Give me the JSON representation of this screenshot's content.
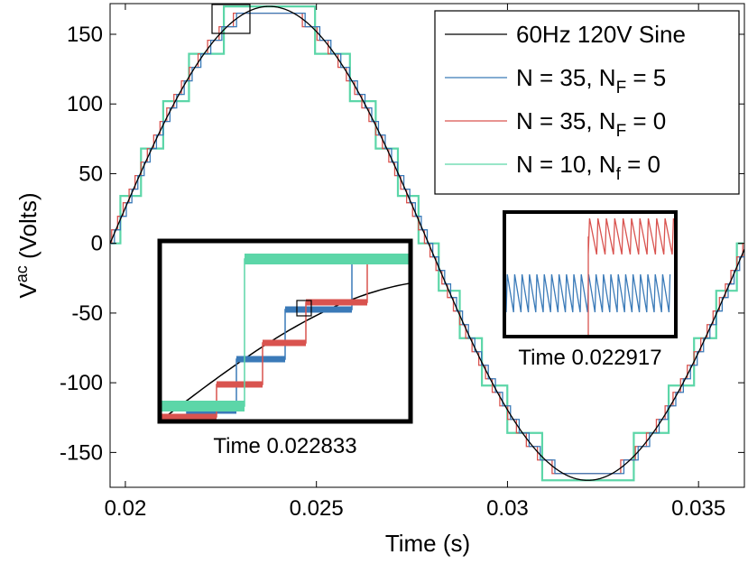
{
  "chart_data": {
    "type": "line",
    "xlabel": "Time (s)",
    "ylabel_base": "V",
    "ylabel_sup": "ac",
    "ylabel_rest": " (Volts)",
    "xlim": [
      0.0196,
      0.0362
    ],
    "ylim": [
      -175,
      172
    ],
    "xticks": [
      0.02,
      0.025,
      0.03,
      0.035
    ],
    "xtick_labels": [
      "0.02",
      "0.025",
      "0.03",
      "0.035"
    ],
    "yticks": [
      150,
      100,
      50,
      0,
      -50,
      -100,
      -150
    ],
    "ytick_labels": [
      "150",
      "100",
      "50",
      "0",
      "-50",
      "-100",
      "-150"
    ],
    "sine": {
      "frequency_hz": 60,
      "amplitude_v": 170,
      "phase_start_s": 0.0196
    },
    "series": [
      {
        "name": "60Hz 120V Sine",
        "levels": 0,
        "offset": 0,
        "color": "#000000"
      },
      {
        "name": "N = 35, NF = 5",
        "levels": 35,
        "offset": -3.5e-05,
        "color": "#3a7ab8"
      },
      {
        "name": "N = 35, NF = 0",
        "levels": 35,
        "offset": 4e-05,
        "color": "#d9534f"
      },
      {
        "name": "N = 10, Nf = 0",
        "levels": 10,
        "offset": 0,
        "color": "#5cd6a8"
      }
    ],
    "legend": {
      "position": "top-right",
      "entries": [
        {
          "text": "60Hz 120V Sine",
          "sub": "",
          "rest": ""
        },
        {
          "text": "N = 35, N",
          "sub": "F",
          "rest": " = 5"
        },
        {
          "text": "N = 35, N",
          "sub": "F",
          "rest": " = 0"
        },
        {
          "text": "N = 10, N",
          "sub": "f",
          "rest": " = 0"
        }
      ]
    },
    "insets": [
      {
        "label": "Time 0.022833"
      },
      {
        "label": "Time 0.022917"
      }
    ]
  }
}
